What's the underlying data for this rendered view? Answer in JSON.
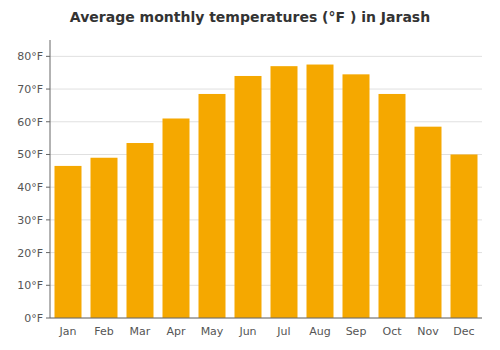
{
  "chart_data": {
    "type": "bar",
    "title": "Average monthly temperatures (°F ) in Jarash",
    "categories": [
      "Jan",
      "Feb",
      "Mar",
      "Apr",
      "May",
      "Jun",
      "Jul",
      "Aug",
      "Sep",
      "Oct",
      "Nov",
      "Dec"
    ],
    "values": [
      46.5,
      49.0,
      53.5,
      61.0,
      68.5,
      74.0,
      77.0,
      77.5,
      74.5,
      68.5,
      58.5,
      50.0
    ],
    "color": "#F5A800",
    "ylim": [
      0,
      85
    ],
    "yticks": [
      {
        "value": 0,
        "label": "0°F"
      },
      {
        "value": 10,
        "label": "10°F"
      },
      {
        "value": 20,
        "label": "20°F"
      },
      {
        "value": 30,
        "label": "30°F"
      },
      {
        "value": 40,
        "label": "40°F"
      },
      {
        "value": 50,
        "label": "50°F"
      },
      {
        "value": 60,
        "label": "60°F"
      },
      {
        "value": 70,
        "label": "70°F"
      },
      {
        "value": 80,
        "label": "80°F"
      }
    ],
    "grid": true
  }
}
